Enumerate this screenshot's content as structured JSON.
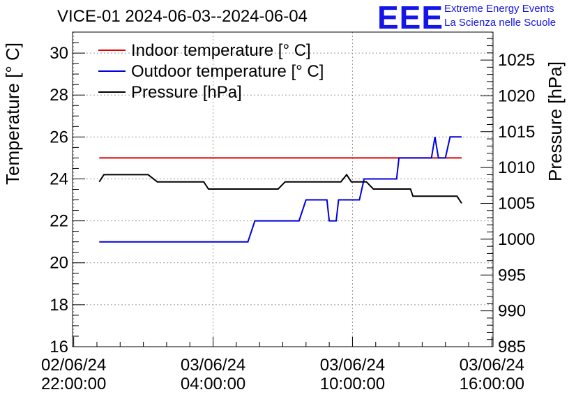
{
  "header": {
    "title": "VICE-01 2024-06-03--2024-06-04",
    "logo_text": "EEE",
    "logo_line1": "Extreme Energy Events",
    "logo_line2": "La Scienza nelle Scuole",
    "logo_color": "#1515e8"
  },
  "chart_data": {
    "type": "line",
    "title": "VICE-01 2024-06-03--2024-06-04",
    "ylabel": "Temperature [° C]",
    "y2label": "Pressure [hPa]",
    "ylim": [
      16,
      31
    ],
    "y2lim": [
      985,
      1028.9
    ],
    "yticks": [
      16,
      18,
      20,
      22,
      24,
      26,
      28,
      30
    ],
    "y2ticks": [
      985,
      990,
      995,
      1000,
      1005,
      1010,
      1015,
      1020,
      1025
    ],
    "x_tick_labels": [
      [
        "02/06/24",
        "22:00:00"
      ],
      [
        "03/06/24",
        "04:00:00"
      ],
      [
        "03/06/24",
        "10:00:00"
      ],
      [
        "03/06/24",
        "16:00:00"
      ]
    ],
    "x_tick_hours": [
      0,
      6,
      12,
      18
    ],
    "xlim_hours": [
      -0.05,
      18.05
    ],
    "grid": true,
    "legend_position": "top-left",
    "series": [
      {
        "name": "Indoor temperature [° C]",
        "color": "#e00000",
        "axis": "left",
        "points": [
          [
            1.1,
            25
          ],
          [
            16.7,
            25
          ]
        ]
      },
      {
        "name": "Outdoor temperature [° C]",
        "color": "#0000e0",
        "axis": "left",
        "points": [
          [
            1.1,
            21
          ],
          [
            7.5,
            21
          ],
          [
            7.8,
            22
          ],
          [
            9.7,
            22
          ],
          [
            10.0,
            23
          ],
          [
            10.9,
            23
          ],
          [
            11.0,
            22
          ],
          [
            11.3,
            22
          ],
          [
            11.4,
            23
          ],
          [
            12.3,
            23
          ],
          [
            12.5,
            24
          ],
          [
            13.9,
            24
          ],
          [
            14.0,
            25
          ],
          [
            15.4,
            25
          ],
          [
            15.55,
            26
          ],
          [
            15.7,
            25
          ],
          [
            16.0,
            25
          ],
          [
            16.2,
            26
          ],
          [
            16.7,
            26
          ]
        ]
      },
      {
        "name": "Pressure [hPa]",
        "color": "#000000",
        "axis": "right",
        "points": [
          [
            1.1,
            1008
          ],
          [
            1.3,
            1009
          ],
          [
            3.2,
            1009
          ],
          [
            3.6,
            1008
          ],
          [
            5.6,
            1008
          ],
          [
            5.8,
            1007
          ],
          [
            8.8,
            1007
          ],
          [
            9.1,
            1008
          ],
          [
            11.5,
            1008
          ],
          [
            11.75,
            1009
          ],
          [
            11.95,
            1008
          ],
          [
            12.3,
            1008
          ],
          [
            12.6,
            1008
          ],
          [
            12.9,
            1007
          ],
          [
            14.5,
            1007
          ],
          [
            14.6,
            1006
          ],
          [
            16.5,
            1006
          ],
          [
            16.7,
            1005
          ]
        ]
      }
    ]
  }
}
